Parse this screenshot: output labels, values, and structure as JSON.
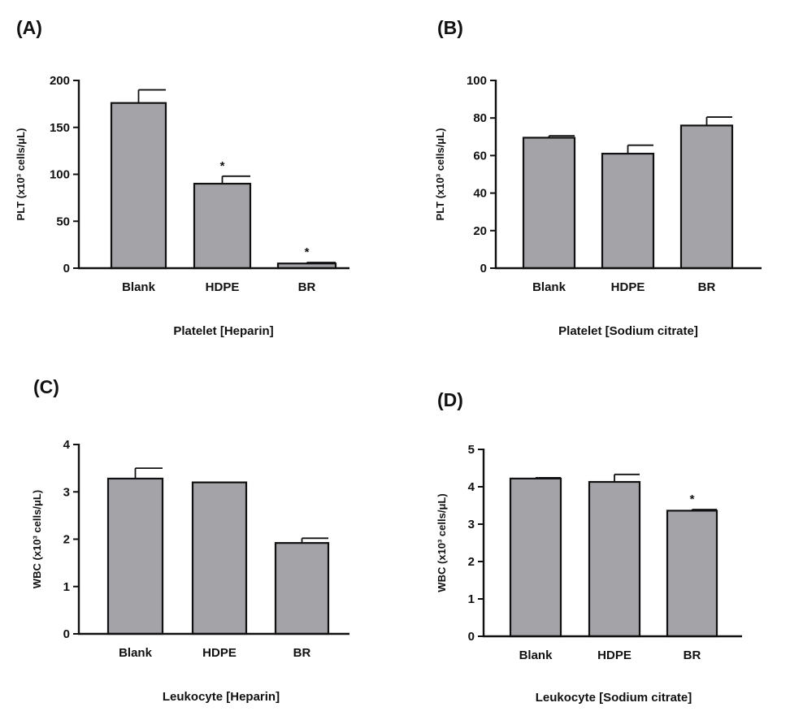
{
  "chart_data": [
    {
      "type": "bar",
      "panel": "(A)",
      "xlabel": "Platelet [Heparin]",
      "ylabel": "PLT (x10³ cells/μL)",
      "ylim": [
        0,
        200
      ],
      "yticks": [
        0,
        50,
        100,
        150,
        200
      ],
      "categories": [
        "Blank",
        "HDPE",
        "BR"
      ],
      "values": [
        176,
        90,
        5
      ],
      "errors": [
        14,
        8,
        1
      ],
      "annotations": [
        "",
        "*",
        "*"
      ],
      "bar_color": "#a3a3a8"
    },
    {
      "type": "bar",
      "panel": "(B)",
      "xlabel": "Platelet [Sodium citrate]",
      "ylabel": "PLT (x10³ cells/μL)",
      "ylim": [
        0,
        100
      ],
      "yticks": [
        0,
        20,
        40,
        60,
        80,
        100
      ],
      "categories": [
        "Blank",
        "HDPE",
        "BR"
      ],
      "values": [
        69.5,
        61,
        76
      ],
      "errors": [
        1,
        4.5,
        4.5
      ],
      "annotations": [
        "",
        "",
        ""
      ],
      "bar_color": "#a3a3a8"
    },
    {
      "type": "bar",
      "panel": "(C)",
      "xlabel": "Leukocyte [Heparin]",
      "ylabel": "WBC (x10³ cells/μL)",
      "ylim": [
        0,
        4
      ],
      "yticks": [
        0,
        1,
        2,
        3,
        4
      ],
      "categories": [
        "Blank",
        "HDPE",
        "BR"
      ],
      "values": [
        3.28,
        3.2,
        1.92
      ],
      "errors": [
        0.22,
        0,
        0.1
      ],
      "annotations": [
        "",
        "",
        ""
      ],
      "bar_color": "#a3a3a8"
    },
    {
      "type": "bar",
      "panel": "(D)",
      "xlabel": "Leukocyte [Sodium citrate]",
      "ylabel": "WBC (x10³ cells/μL)",
      "ylim": [
        0,
        5
      ],
      "yticks": [
        0,
        1,
        2,
        3,
        4,
        5
      ],
      "categories": [
        "Blank",
        "HDPE",
        "BR"
      ],
      "values": [
        4.22,
        4.13,
        3.36
      ],
      "errors": [
        0.02,
        0.2,
        0.03
      ],
      "annotations": [
        "",
        "",
        "*"
      ],
      "bar_color": "#a3a3a8"
    }
  ]
}
